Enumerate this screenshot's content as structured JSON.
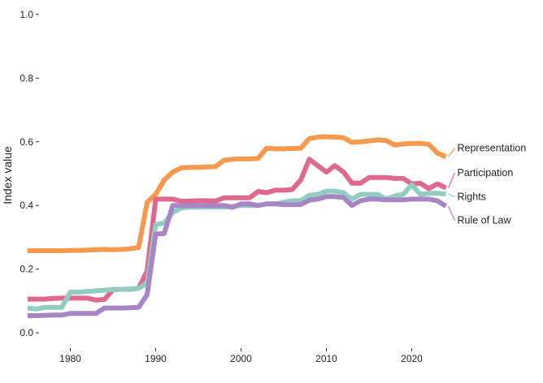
{
  "chart_data": {
    "type": "line",
    "title": "",
    "xlabel": "",
    "ylabel": "Index value",
    "xlim": [
      1975,
      2031
    ],
    "ylim": [
      -0.03,
      1.03
    ],
    "grid": false,
    "legend": "direct labels at line ends (right)",
    "x_ticks": [
      1980,
      1990,
      2000,
      2010,
      2020
    ],
    "x_tick_labels": [
      "1980",
      "1990",
      "2000",
      "2010",
      "2020"
    ],
    "y_ticks": [
      0.0,
      0.2,
      0.4,
      0.6,
      0.8,
      1.0
    ],
    "y_tick_labels": [
      "0.0",
      "0.2",
      "0.4",
      "0.6",
      "0.8",
      "1.0"
    ],
    "x": [
      1975,
      1976,
      1977,
      1978,
      1979,
      1980,
      1981,
      1982,
      1983,
      1984,
      1985,
      1986,
      1987,
      1988,
      1989,
      1990,
      1991,
      1992,
      1993,
      1994,
      1995,
      1996,
      1997,
      1998,
      1999,
      2000,
      2001,
      2002,
      2003,
      2004,
      2005,
      2006,
      2007,
      2008,
      2009,
      2010,
      2011,
      2012,
      2013,
      2014,
      2015,
      2016,
      2017,
      2018,
      2019,
      2020,
      2021,
      2022,
      2023,
      2024
    ],
    "series": [
      {
        "name": "Representation",
        "color": "#F5994E",
        "label_y": 0.58,
        "values": [
          0.258,
          0.258,
          0.258,
          0.258,
          0.258,
          0.259,
          0.259,
          0.26,
          0.261,
          0.262,
          0.261,
          0.262,
          0.264,
          0.268,
          0.41,
          0.435,
          0.48,
          0.505,
          0.518,
          0.52,
          0.52,
          0.521,
          0.522,
          0.542,
          0.545,
          0.546,
          0.546,
          0.548,
          0.58,
          0.578,
          0.578,
          0.579,
          0.58,
          0.61,
          0.615,
          0.616,
          0.615,
          0.613,
          0.598,
          0.6,
          0.603,
          0.606,
          0.604,
          0.59,
          0.593,
          0.595,
          0.595,
          0.592,
          0.565,
          0.553
        ]
      },
      {
        "name": "Participation",
        "color": "#E0678E",
        "label_y": 0.503,
        "values": [
          0.106,
          0.106,
          0.106,
          0.108,
          0.109,
          0.109,
          0.109,
          0.109,
          0.103,
          0.105,
          0.136,
          0.137,
          0.137,
          0.14,
          0.195,
          0.42,
          0.42,
          0.42,
          0.413,
          0.414,
          0.415,
          0.415,
          0.414,
          0.424,
          0.424,
          0.424,
          0.424,
          0.444,
          0.44,
          0.448,
          0.448,
          0.45,
          0.48,
          0.545,
          0.525,
          0.505,
          0.525,
          0.505,
          0.47,
          0.47,
          0.488,
          0.488,
          0.488,
          0.485,
          0.485,
          0.468,
          0.47,
          0.453,
          0.468,
          0.455
        ]
      },
      {
        "name": "Rights",
        "color": "#90CCC1",
        "label_y": 0.428,
        "values": [
          0.078,
          0.075,
          0.08,
          0.08,
          0.08,
          0.128,
          0.128,
          0.13,
          0.132,
          0.134,
          0.136,
          0.137,
          0.138,
          0.14,
          0.156,
          0.34,
          0.345,
          0.378,
          0.392,
          0.395,
          0.395,
          0.395,
          0.395,
          0.395,
          0.397,
          0.4,
          0.4,
          0.4,
          0.405,
          0.405,
          0.41,
          0.415,
          0.415,
          0.432,
          0.435,
          0.445,
          0.445,
          0.44,
          0.42,
          0.435,
          0.435,
          0.435,
          0.42,
          0.43,
          0.435,
          0.465,
          0.435,
          0.438,
          0.438,
          0.436
        ]
      },
      {
        "name": "Rule of Law",
        "color": "#A886C6",
        "label_y": 0.353,
        "values": [
          0.054,
          0.054,
          0.055,
          0.056,
          0.056,
          0.061,
          0.061,
          0.061,
          0.061,
          0.078,
          0.078,
          0.078,
          0.079,
          0.08,
          0.12,
          0.31,
          0.312,
          0.4,
          0.4,
          0.4,
          0.4,
          0.4,
          0.4,
          0.4,
          0.394,
          0.405,
          0.405,
          0.4,
          0.405,
          0.405,
          0.403,
          0.403,
          0.403,
          0.417,
          0.42,
          0.428,
          0.428,
          0.425,
          0.4,
          0.415,
          0.42,
          0.42,
          0.418,
          0.418,
          0.418,
          0.42,
          0.42,
          0.42,
          0.415,
          0.398
        ]
      }
    ]
  }
}
